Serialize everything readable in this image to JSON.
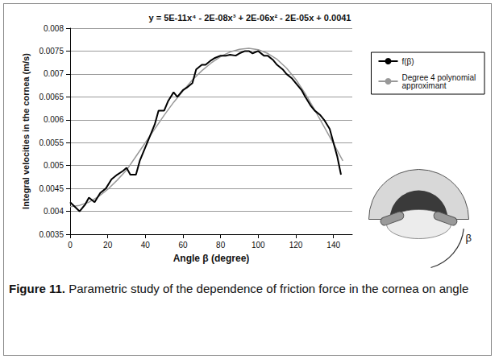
{
  "chart_data": {
    "type": "line",
    "title": "y = 5E-11x⁴ - 2E-08x³ + 2E-06x² - 2E-05x + 0.0041",
    "x_label": "Angle β (degree)",
    "y_label": "Integral velocities in the cornea (m/s)",
    "xlim": [
      0,
      150
    ],
    "xticks": [
      0,
      20,
      40,
      60,
      80,
      100,
      120,
      140
    ],
    "ylim": [
      0.0035,
      0.008
    ],
    "yticks": [
      0.0035,
      0.004,
      0.0045,
      0.005,
      0.0055,
      0.006,
      0.0065,
      0.007,
      0.0075,
      0.008
    ],
    "grid": true,
    "legend": "right",
    "annotations": [
      "β"
    ],
    "series": [
      {
        "name": "f(β)",
        "color": "#000000",
        "line_style": "solid",
        "x": [
          0,
          2,
          5,
          8,
          10,
          13,
          16,
          19,
          22,
          25,
          28,
          30,
          32,
          35,
          37,
          40,
          43,
          45,
          47,
          50,
          52,
          55,
          57,
          60,
          62,
          65,
          67,
          70,
          72,
          75,
          77,
          80,
          83,
          85,
          88,
          90,
          93,
          95,
          97,
          100,
          103,
          105,
          108,
          110,
          113,
          115,
          118,
          120,
          123,
          125,
          128,
          130,
          133,
          135,
          138,
          140,
          142,
          144
        ],
        "values": [
          0.0042,
          0.00412,
          0.004,
          0.00415,
          0.0043,
          0.0042,
          0.0044,
          0.0045,
          0.0047,
          0.0048,
          0.00488,
          0.00495,
          0.0048,
          0.0048,
          0.0051,
          0.0054,
          0.0057,
          0.0059,
          0.0062,
          0.0062,
          0.0064,
          0.0066,
          0.0065,
          0.00665,
          0.0067,
          0.0068,
          0.0071,
          0.0072,
          0.0072,
          0.0073,
          0.00735,
          0.0074,
          0.0074,
          0.00742,
          0.0074,
          0.00745,
          0.0075,
          0.0075,
          0.00745,
          0.0075,
          0.0074,
          0.0074,
          0.0073,
          0.0072,
          0.0071,
          0.007,
          0.0069,
          0.0068,
          0.00665,
          0.0065,
          0.0063,
          0.0062,
          0.0061,
          0.006,
          0.0058,
          0.0055,
          0.0052,
          0.0048
        ]
      },
      {
        "name": "Degree 4 polynomial approximant",
        "color": "#999999",
        "line_style": "solid",
        "x": [
          0,
          5,
          10,
          15,
          20,
          25,
          30,
          35,
          40,
          45,
          50,
          55,
          60,
          65,
          70,
          75,
          80,
          85,
          90,
          95,
          100,
          105,
          110,
          115,
          120,
          125,
          130,
          135,
          140,
          145
        ],
        "values": [
          0.0041,
          0.00413,
          0.0042,
          0.00432,
          0.00448,
          0.00468,
          0.0049,
          0.0052,
          0.0055,
          0.0058,
          0.0061,
          0.00638,
          0.00663,
          0.00687,
          0.00707,
          0.00724,
          0.00738,
          0.00748,
          0.00754,
          0.00756,
          0.00753,
          0.00745,
          0.00732,
          0.00713,
          0.00688,
          0.00657,
          0.00622,
          0.00585,
          0.00548,
          0.0051
        ]
      }
    ]
  },
  "caption": {
    "label": "Figure 11.",
    "text": "Parametric study of the dependence of friction force in the cornea on angle"
  }
}
